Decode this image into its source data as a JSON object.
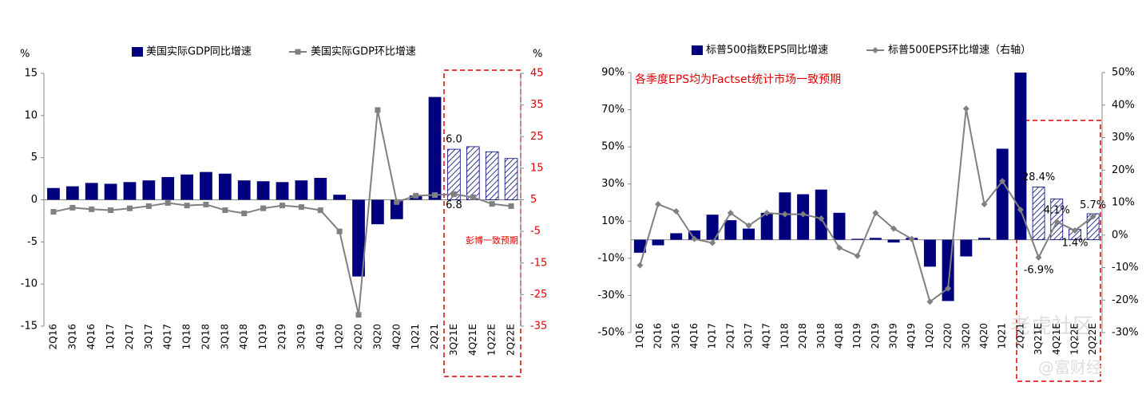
{
  "chart_data": [
    {
      "type": "bar_line",
      "legend": [
        "美国实际GDP同比增速",
        "美国实际GDP环比增速"
      ],
      "y_unit": "%",
      "y2_unit": "%",
      "categories": [
        "2Q16",
        "3Q16",
        "4Q16",
        "1Q17",
        "2Q17",
        "3Q17",
        "4Q17",
        "1Q18",
        "2Q18",
        "3Q18",
        "4Q18",
        "1Q19",
        "2Q19",
        "3Q19",
        "4Q19",
        "1Q20",
        "2Q20",
        "3Q20",
        "4Q20",
        "1Q21",
        "2Q21",
        "3Q21E",
        "4Q21E",
        "1Q22E",
        "2Q22E"
      ],
      "series": [
        {
          "name": "美国实际GDP同比增速",
          "color": "#00007f",
          "axis": "y",
          "values": [
            1.4,
            1.6,
            2.0,
            1.9,
            2.1,
            2.3,
            2.7,
            3.0,
            3.3,
            3.1,
            2.3,
            2.2,
            2.1,
            2.3,
            2.6,
            0.6,
            -9.1,
            -2.9,
            -2.3,
            0.5,
            12.2,
            6.0,
            6.3,
            5.7,
            4.9
          ],
          "value_labels": [
            null,
            null,
            null,
            null,
            null,
            null,
            null,
            null,
            null,
            null,
            null,
            null,
            null,
            null,
            null,
            null,
            null,
            null,
            null,
            null,
            null,
            "6.0",
            null,
            null,
            null
          ]
        },
        {
          "name": "美国实际GDP环比增速",
          "color": "#808080",
          "axis": "y2",
          "marker": "square",
          "values": [
            1.2,
            2.5,
            2.0,
            1.7,
            2.3,
            3.0,
            4.0,
            3.2,
            3.5,
            1.7,
            0.7,
            2.3,
            3.2,
            2.7,
            1.7,
            -5.0,
            -31.4,
            33.4,
            4.3,
            6.3,
            6.5,
            6.8,
            5.8,
            3.7,
            3.0
          ],
          "value_labels": [
            null,
            null,
            null,
            null,
            null,
            null,
            null,
            null,
            null,
            null,
            null,
            null,
            null,
            null,
            null,
            null,
            null,
            null,
            null,
            null,
            null,
            "6.8",
            null,
            null,
            null
          ]
        }
      ],
      "ylim": [
        -15,
        15
      ],
      "yticks": [
        -15,
        -10,
        -5,
        0,
        5,
        10,
        15
      ],
      "y2lim": [
        -35,
        45
      ],
      "y2ticks": [
        -35,
        -25,
        -15,
        -5,
        5,
        15,
        25,
        35,
        45
      ],
      "y2_color": "#e00000",
      "annotation": "彭博一致预期"
    },
    {
      "type": "bar_line",
      "legend": [
        "标普500指数EPS同比增速",
        "标普500EPS环比增速（右轴）"
      ],
      "categories": [
        "1Q16",
        "2Q16",
        "3Q16",
        "4Q16",
        "1Q17",
        "2Q17",
        "3Q17",
        "4Q17",
        "1Q18",
        "2Q18",
        "3Q18",
        "4Q18",
        "1Q19",
        "2Q19",
        "3Q19",
        "4Q19",
        "1Q20",
        "2Q20",
        "3Q20",
        "4Q20",
        "1Q21",
        "2Q21",
        "3Q21E",
        "4Q21E",
        "1Q22E",
        "2Q22E"
      ],
      "series": [
        {
          "name": "标普500指数EPS同比增速",
          "color": "#00007f",
          "axis": "y",
          "values": [
            -7,
            -3,
            3.5,
            5,
            13.5,
            10.5,
            6,
            14.5,
            25.5,
            24.5,
            27,
            14.5,
            0.5,
            1,
            -1.5,
            1,
            -14.5,
            -33,
            -9,
            1,
            49,
            90,
            28.4,
            22,
            5.5,
            14
          ],
          "value_labels": [
            null,
            null,
            null,
            null,
            null,
            null,
            null,
            null,
            null,
            null,
            null,
            null,
            null,
            null,
            null,
            null,
            null,
            null,
            null,
            null,
            null,
            null,
            "28.4%",
            null,
            null,
            null
          ]
        },
        {
          "name": "标普500EPS环比增速（右轴）",
          "color": "#808080",
          "axis": "y2",
          "marker": "diamond",
          "values": [
            -9.3,
            9.5,
            7.3,
            -1.2,
            -2.4,
            6.8,
            2.9,
            6.8,
            6.4,
            6.4,
            5.1,
            -3.9,
            -6.4,
            6.8,
            2.0,
            -1.2,
            -20.5,
            -16.4,
            38.9,
            9.5,
            16.6,
            7.8,
            -6.9,
            4.1,
            1.4,
            5.7
          ],
          "value_labels": [
            null,
            null,
            null,
            null,
            null,
            null,
            null,
            null,
            null,
            null,
            null,
            null,
            null,
            null,
            null,
            null,
            null,
            null,
            null,
            null,
            null,
            null,
            "-6.9%",
            "4.1%",
            "1.4%",
            "5.7%"
          ]
        }
      ],
      "ylim": [
        -50,
        90
      ],
      "yticks": [
        {
          "value": -50,
          "label": "-50%"
        },
        {
          "value": -30,
          "label": "-30%"
        },
        {
          "value": -10,
          "label": "-10%"
        },
        {
          "value": 10,
          "label": "10%"
        },
        {
          "value": 30,
          "label": "30%"
        },
        {
          "value": 50,
          "label": "50%"
        },
        {
          "value": 70,
          "label": "70%"
        },
        {
          "value": 90,
          "label": "90%"
        }
      ],
      "y2lim": [
        -30,
        50
      ],
      "y2ticks": [
        {
          "value": -30,
          "label": "-30%"
        },
        {
          "value": -20,
          "label": "-20%"
        },
        {
          "value": -10,
          "label": "-10%"
        },
        {
          "value": 0,
          "label": "0%"
        },
        {
          "value": 10,
          "label": "10%"
        },
        {
          "value": 20,
          "label": "20%"
        },
        {
          "value": 30,
          "label": "30%"
        },
        {
          "value": 40,
          "label": "40%"
        },
        {
          "value": 50,
          "label": "50%"
        }
      ],
      "y2_color": "#000000",
      "annotation": "各季度EPS均为Factset统计市场一致预期"
    }
  ],
  "watermark": [
    "老虎社区",
    "@富财经"
  ]
}
